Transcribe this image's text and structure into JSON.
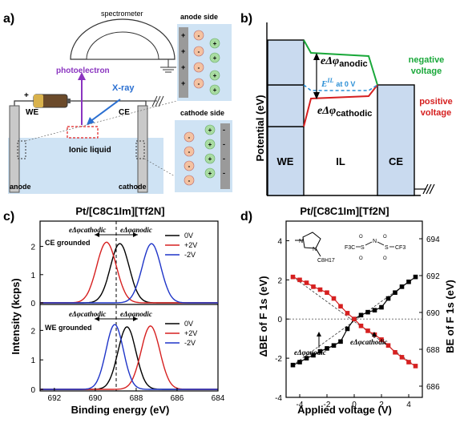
{
  "panels": {
    "a": {
      "letter": "a)",
      "spectrometer": "spectrometer",
      "photoelectron": "photoelectron",
      "xray": "X-ray",
      "we": "WE",
      "ce": "CE",
      "ionic_liquid": "Ionic liquid",
      "anode": "anode",
      "cathode": "cathode",
      "anode_side": "anode side",
      "cathode_side": "cathode side",
      "plus": "+",
      "minus": "-",
      "colors": {
        "liquid": "#cfe3f4",
        "anion": "#f4c2a1",
        "cation": "#a9dca2",
        "xray": "#2a6fd1",
        "photo": "#8b35c0"
      }
    },
    "b": {
      "letter": "b)",
      "ylabel": "Potential (eV)",
      "we": "WE",
      "il": "IL",
      "ce": "CE",
      "negative_voltage": [
        "negative",
        "voltage"
      ],
      "positive_voltage": [
        "positive",
        "voltage"
      ],
      "anodic_e": "eΔφ",
      "anodic_sub": "anodic",
      "cathodic_e": "eΔφ",
      "cathodic_sub": "cathodic",
      "eil_label": "E",
      "eil_sup": "IL",
      "eil_at": "at 0 V",
      "colors": {
        "negative": "#1aa83a",
        "positive": "#d62020",
        "eil": "#2a8fd6",
        "block": "#c9daef"
      }
    },
    "c": {
      "letter": "c)",
      "title": "Pt/[C8C1Im][Tf2N]",
      "ylabel": "Intensity (kcps)",
      "xlabel": "Binding energy (eV)",
      "top_label": "CE grounded",
      "bottom_label": "WE grounded",
      "cathodic": "eΔφcathodic",
      "anodic": "eΔφanodic",
      "legend": [
        "0V",
        "+2V",
        "-2V"
      ],
      "x_ticks": [
        "692",
        "690",
        "688",
        "686",
        "684"
      ],
      "y_ticks": [
        "0",
        "1",
        "2"
      ]
    },
    "d": {
      "letter": "d)",
      "title": "Pt/[C8C1Im][Tf2N]",
      "ylabel_left": "ΔBE of F 1s (eV)",
      "ylabel_right": "BE of F 1s (eV)",
      "xlabel": "Applied voltage (V)",
      "anodic_label": "eΔφanodic",
      "cathodic_label": "eΔφcathodic",
      "x_ticks": [
        "-4",
        "-2",
        "0",
        "2",
        "4"
      ],
      "y_ticks_left": [
        "-4",
        "-2",
        "0",
        "2",
        "4"
      ],
      "y_ticks_right": [
        "686",
        "688",
        "690",
        "692",
        "694"
      ],
      "mol_labels": {
        "cation_me": "—",
        "cation_plus": "+",
        "n1": "N",
        "n2": "N",
        "c8": "C8H17",
        "f3c": "F3C",
        "s": "S",
        "n": "N",
        "cf3": "CF3",
        "o": "O"
      }
    }
  },
  "chart_data": [
    {
      "type": "line",
      "title": "",
      "xlabel": "Binding energy (eV)",
      "ylabel": "Intensity (kcps)",
      "xlim": [
        692.7,
        684
      ],
      "ylim": [
        0,
        2.5
      ],
      "subplot": "CE grounded",
      "series": [
        {
          "name": "0V",
          "color": "#000000",
          "center": 688.8,
          "width": 0.65,
          "height": 2.1
        },
        {
          "name": "+2V",
          "color": "#d62020",
          "center": 689.45,
          "width": 0.68,
          "height": 2.15
        },
        {
          "name": "-2V",
          "color": "#1f35c8",
          "center": 687.25,
          "width": 0.65,
          "height": 2.1
        }
      ]
    },
    {
      "type": "line",
      "title": "",
      "xlabel": "Binding energy (eV)",
      "ylabel": "Intensity (kcps)",
      "xlim": [
        692.7,
        684
      ],
      "ylim": [
        0,
        2.5
      ],
      "subplot": "WE grounded",
      "series": [
        {
          "name": "0V",
          "color": "#000000",
          "center": 688.45,
          "width": 0.62,
          "height": 2.12
        },
        {
          "name": "+2V",
          "color": "#d62020",
          "center": 687.3,
          "width": 0.65,
          "height": 2.15
        },
        {
          "name": "-2V",
          "color": "#1f35c8",
          "center": 689.05,
          "width": 0.6,
          "height": 2.2
        }
      ]
    },
    {
      "type": "scatter",
      "title": "Pt/[C8C1Im][Tf2N]",
      "xlabel": "Applied voltage (V)",
      "ylabel": "ΔBE of F 1s (eV)",
      "xlim": [
        -5,
        5
      ],
      "ylim": [
        -4,
        5
      ],
      "series": [
        {
          "name": "black",
          "color": "#000000",
          "x": [
            -4.5,
            -4.0,
            -3.5,
            -3.0,
            -2.5,
            -2.0,
            -1.5,
            -1.0,
            -0.5,
            0.0,
            0.5,
            1.0,
            1.5,
            2.0,
            2.5,
            3.0,
            3.5,
            4.0,
            4.5
          ],
          "y": [
            -2.35,
            -2.2,
            -2.0,
            -1.85,
            -1.65,
            -1.5,
            -1.35,
            -1.15,
            -0.5,
            0.0,
            0.2,
            0.35,
            0.45,
            0.6,
            1.05,
            1.35,
            1.65,
            1.9,
            2.15
          ]
        },
        {
          "name": "red",
          "color": "#d62020",
          "x": [
            -4.5,
            -4.0,
            -3.5,
            -3.0,
            -2.5,
            -2.0,
            -1.5,
            -1.0,
            -0.5,
            0.0,
            0.5,
            1.0,
            1.5,
            2.0,
            2.5,
            3.0,
            3.5,
            4.0,
            4.5
          ],
          "y": [
            2.15,
            2.0,
            1.85,
            1.65,
            1.5,
            1.35,
            1.05,
            0.65,
            0.3,
            0.0,
            -0.35,
            -0.6,
            -0.8,
            -1.05,
            -1.35,
            -1.7,
            -1.95,
            -2.2,
            -2.4
          ]
        }
      ]
    }
  ]
}
